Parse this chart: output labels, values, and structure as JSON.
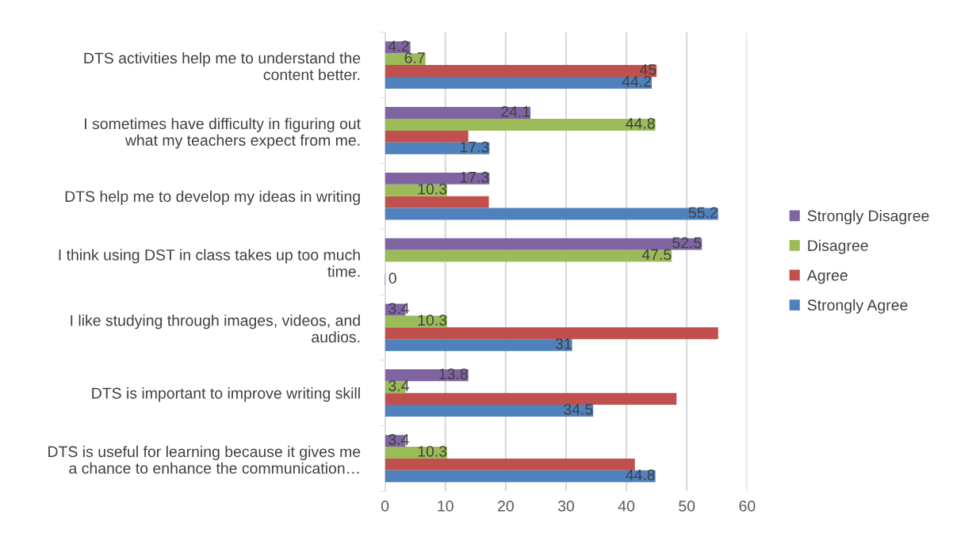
{
  "chart_data": {
    "type": "bar",
    "orientation": "horizontal",
    "categories": [
      "DTS activities help me to understand the\ncontent better.",
      "I sometimes have difficulty in figuring out\nwhat my teachers expect from me.",
      "DTS help me to develop my ideas in writing",
      "I think using DST in class takes up too much\ntime.",
      "I like studying through images, videos, and\naudios.",
      "DTS is important to improve writing skill",
      "DTS is useful for learning because it gives me\na chance to enhance the communication…"
    ],
    "series": [
      {
        "name": "Strongly Agree",
        "color": "#4f81bd",
        "values": [
          44.2,
          17.3,
          55.2,
          0,
          31,
          34.5,
          44.8
        ],
        "value_labels": [
          "44.2",
          "17.3",
          "55.2",
          "0",
          "31",
          "34.5",
          "44.8"
        ]
      },
      {
        "name": "Agree",
        "color": "#c0504d",
        "values": [
          45,
          13.8,
          17.2,
          null,
          55.2,
          48.3,
          41.4
        ],
        "value_labels": [
          "45",
          null,
          null,
          null,
          null,
          null,
          null
        ]
      },
      {
        "name": "Disagree",
        "color": "#9bbb59",
        "values": [
          6.7,
          44.8,
          10.3,
          47.5,
          10.3,
          3.4,
          10.3
        ],
        "value_labels": [
          "6.7",
          "44.8",
          "10.3",
          "47.5",
          "10.3",
          "3.4",
          "10.3"
        ]
      },
      {
        "name": "Strongly Disagree",
        "color": "#8064a2",
        "values": [
          4.2,
          24.1,
          17.3,
          52.5,
          3.4,
          13.8,
          3.4
        ],
        "value_labels": [
          "4.2",
          "24.1",
          "17.3",
          "52.5",
          "3.4",
          "13.8",
          "3.4"
        ]
      }
    ],
    "xlim": [
      0,
      60
    ],
    "xticks": [
      0,
      10,
      20,
      30,
      40,
      50,
      60
    ],
    "grid": "x",
    "legend": "right"
  }
}
